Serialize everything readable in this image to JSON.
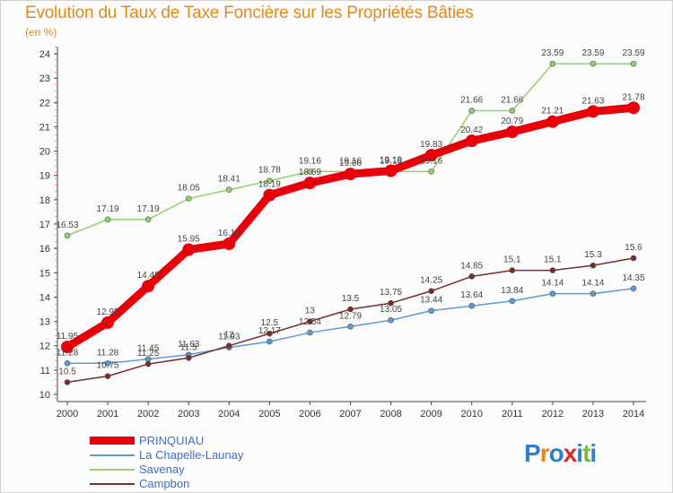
{
  "title": "Evolution du Taux de Taxe Foncière sur les Propriétés Bâties",
  "unit": "(en %)",
  "logo": {
    "text": "Proxiti",
    "colors": [
      "#2e7fc3",
      "#e88420",
      "#2e7fc3",
      "#d8272d",
      "#2e7fc3",
      "#7ab83f",
      "#2e7fc3"
    ]
  },
  "chart_data": {
    "type": "line",
    "x": [
      2000,
      2001,
      2002,
      2003,
      2004,
      2005,
      2006,
      2007,
      2008,
      2009,
      2010,
      2011,
      2012,
      2013,
      2014
    ],
    "ylim": [
      10,
      24
    ],
    "yticks": [
      10,
      11,
      12,
      13,
      14,
      15,
      16,
      17,
      18,
      19,
      20,
      21,
      22,
      23,
      24
    ],
    "grid": false,
    "legend_position": "bottom-left",
    "series": [
      {
        "name": "PRINQUIAU",
        "color": "#e8000b",
        "labels": [
          "11.95",
          "12.95",
          "14.45",
          "15.95",
          "16.19",
          "18.19",
          "18.69",
          "19.06",
          "19.19",
          "19.83",
          "20.42",
          "20.79",
          "21.21",
          "21.63",
          "21.78"
        ],
        "values": [
          11.95,
          12.95,
          14.45,
          15.95,
          16.19,
          18.19,
          18.69,
          19.06,
          19.19,
          19.83,
          20.42,
          20.79,
          21.21,
          21.63,
          21.78
        ]
      },
      {
        "name": "La Chapelle-Launay",
        "color": "#5b9bd5",
        "labels": [
          "11.28",
          "11.28",
          "11.45",
          "11.63",
          "11.93",
          "12.17",
          "12.54",
          "12.79",
          "13.05",
          "13.44",
          "13.64",
          "13.84",
          "14.14",
          "14.14",
          "14.35"
        ],
        "values": [
          11.28,
          11.28,
          11.45,
          11.63,
          11.93,
          12.17,
          12.54,
          12.79,
          13.05,
          13.44,
          13.64,
          13.84,
          14.14,
          14.14,
          14.35
        ]
      },
      {
        "name": "Savenay",
        "color": "#8fd16a",
        "labels": [
          "16.53",
          "17.19",
          "17.19",
          "18.05",
          "18.41",
          "18.78",
          "19.16",
          "19.16",
          "19.16",
          "19.16",
          "21.66",
          "21.66",
          "23.59",
          "23.59",
          "23.59"
        ],
        "values": [
          16.53,
          17.19,
          17.19,
          18.05,
          18.41,
          18.78,
          19.16,
          19.16,
          19.16,
          19.16,
          21.66,
          21.66,
          23.59,
          23.59,
          23.59
        ]
      },
      {
        "name": "Campbon",
        "color": "#7a2c2c",
        "labels": [
          "10.5",
          "10.75",
          "11.25",
          "11.5",
          "12",
          "12.5",
          "13",
          "13.5",
          "13.75",
          "14.25",
          "14.85",
          "15.1",
          "15.1",
          "15.3",
          "15.6"
        ],
        "values": [
          10.5,
          10.75,
          11.25,
          11.5,
          12,
          12.5,
          13,
          13.5,
          13.75,
          14.25,
          14.85,
          15.1,
          15.1,
          15.3,
          15.6
        ]
      }
    ]
  }
}
